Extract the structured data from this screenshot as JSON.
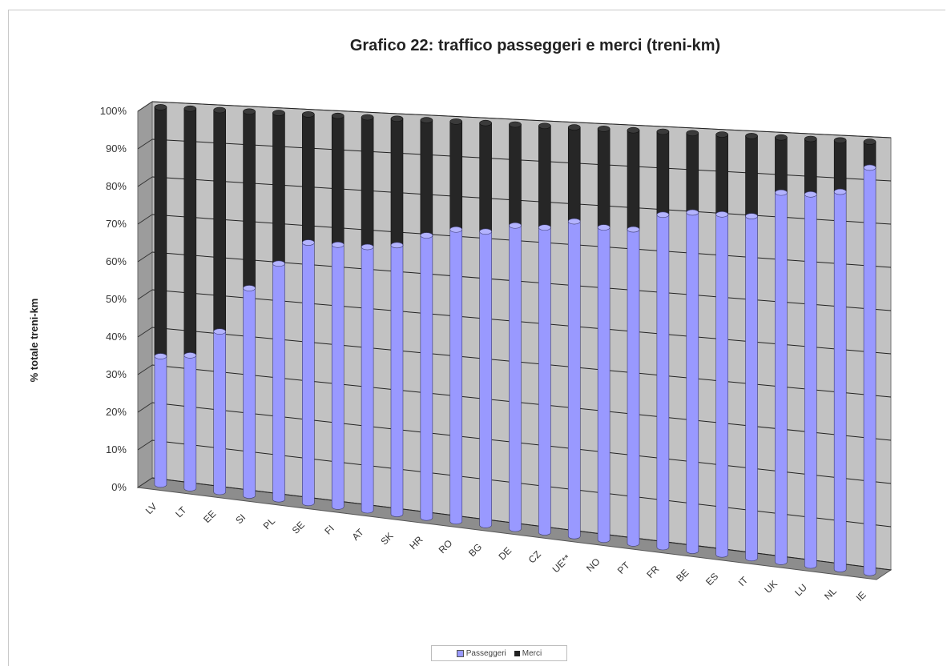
{
  "chart_data": {
    "type": "bar",
    "stacked": true,
    "percent_stacked": true,
    "style": "3d-cylinder",
    "title": "Grafico 22: traffico passeggeri e merci (treni-km)",
    "xlabel": "",
    "ylabel": "% totale treni-km",
    "ylim": [
      0,
      100
    ],
    "yticks": [
      "0%",
      "10%",
      "20%",
      "30%",
      "40%",
      "50%",
      "60%",
      "70%",
      "80%",
      "90%",
      "100%"
    ],
    "grid": true,
    "legend_position": "bottom",
    "categories": [
      "LV",
      "LT",
      "EE",
      "SI",
      "PL",
      "SE",
      "FI",
      "AT",
      "SK",
      "HR",
      "RO",
      "BG",
      "DE",
      "CZ",
      "UE**",
      "NO",
      "PT",
      "FR",
      "BE",
      "ES",
      "IT",
      "UK",
      "LU",
      "NL",
      "IE"
    ],
    "series": [
      {
        "name": "Passeggeri",
        "color": "#9999ff",
        "values": [
          34,
          35,
          42,
          54,
          61,
          67,
          67,
          67,
          68,
          71,
          73,
          73,
          75,
          75,
          77,
          76,
          76,
          80,
          81,
          81,
          81,
          87,
          87,
          88,
          94
        ]
      },
      {
        "name": "Merci",
        "color": "#222222",
        "values": [
          66,
          65,
          58,
          46,
          39,
          33,
          33,
          33,
          32,
          29,
          27,
          27,
          25,
          25,
          23,
          24,
          24,
          20,
          19,
          19,
          19,
          13,
          13,
          12,
          6
        ]
      }
    ]
  },
  "legend": {
    "items": [
      {
        "label": "Passeggeri",
        "color": "#9999ff"
      },
      {
        "label": "Merci",
        "color": "#222222"
      }
    ]
  }
}
